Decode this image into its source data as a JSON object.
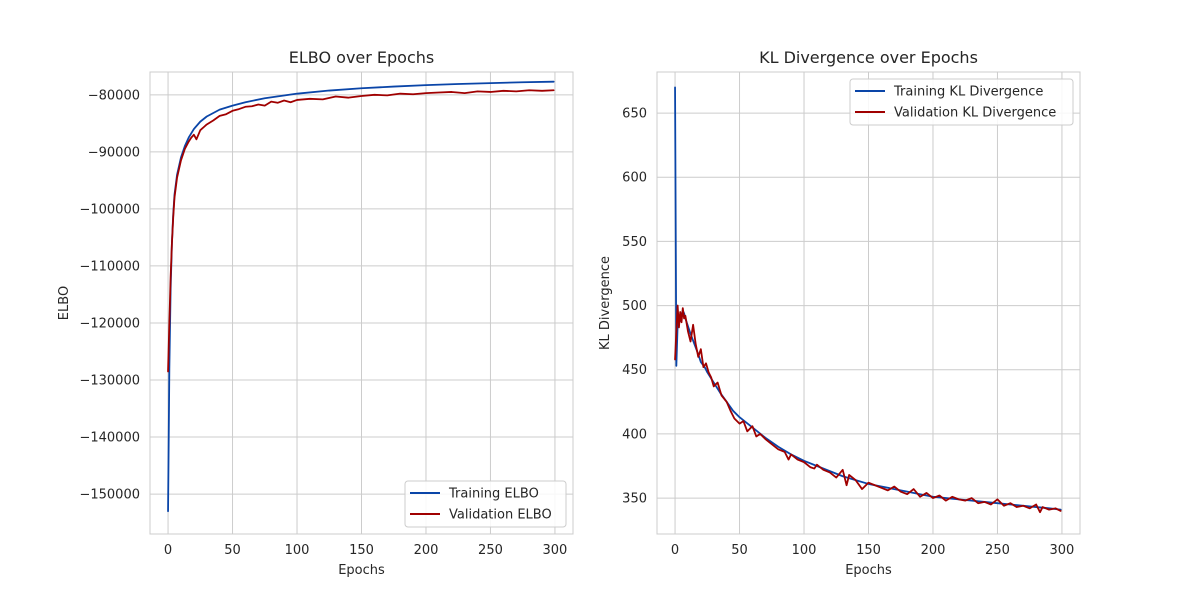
{
  "colors": {
    "training": "#0a45a8",
    "validation": "#a00000",
    "grid": "#cccccc"
  },
  "chart_data": [
    {
      "type": "line",
      "title": "ELBO over Epochs",
      "xlabel": "Epochs",
      "ylabel": "ELBO",
      "xlim": [
        -14,
        314
      ],
      "ylim": [
        -157000,
        -76000
      ],
      "x_ticks": [
        0,
        50,
        100,
        150,
        200,
        250,
        300
      ],
      "x_tick_labels": [
        "0",
        "50",
        "100",
        "150",
        "200",
        "250",
        "300"
      ],
      "y_ticks": [
        -150000,
        -140000,
        -130000,
        -120000,
        -110000,
        -100000,
        -90000,
        -80000
      ],
      "y_tick_labels": [
        "−150000",
        "−140000",
        "−130000",
        "−120000",
        "−110000",
        "−100000",
        "−90000",
        "−80000"
      ],
      "grid": true,
      "legend_position": "lower-right",
      "series": [
        {
          "name": "Training ELBO",
          "color": "#0a45a8",
          "x": [
            0,
            1,
            2,
            3,
            4,
            5,
            7,
            10,
            13,
            16,
            20,
            25,
            30,
            40,
            50,
            60,
            75,
            100,
            125,
            150,
            175,
            200,
            225,
            250,
            275,
            299
          ],
          "y": [
            -153000,
            -128000,
            -114000,
            -106000,
            -101000,
            -97500,
            -94000,
            -91000,
            -89000,
            -87500,
            -86000,
            -84700,
            -83800,
            -82600,
            -81900,
            -81300,
            -80600,
            -79800,
            -79250,
            -78850,
            -78550,
            -78300,
            -78100,
            -77950,
            -77800,
            -77700
          ]
        },
        {
          "name": "Validation ELBO",
          "color": "#a00000",
          "x": [
            0,
            1,
            2,
            3,
            4,
            5,
            7,
            10,
            13,
            16,
            18,
            20,
            22,
            25,
            28,
            30,
            35,
            40,
            45,
            50,
            55,
            60,
            65,
            70,
            75,
            80,
            85,
            90,
            95,
            100,
            110,
            120,
            130,
            140,
            150,
            160,
            170,
            180,
            190,
            200,
            210,
            220,
            230,
            240,
            250,
            260,
            270,
            280,
            290,
            299
          ],
          "y": [
            -128500,
            -120000,
            -112000,
            -106000,
            -101500,
            -98000,
            -94500,
            -91500,
            -89500,
            -88200,
            -87500,
            -87000,
            -87800,
            -86200,
            -85600,
            -85200,
            -84500,
            -83700,
            -83400,
            -82800,
            -82500,
            -82100,
            -82000,
            -81700,
            -81900,
            -81200,
            -81400,
            -81000,
            -81300,
            -80900,
            -80700,
            -80800,
            -80300,
            -80500,
            -80200,
            -80000,
            -80100,
            -79800,
            -79900,
            -79700,
            -79600,
            -79500,
            -79700,
            -79400,
            -79500,
            -79300,
            -79400,
            -79200,
            -79300,
            -79200
          ]
        }
      ]
    },
    {
      "type": "line",
      "title": "KL Divergence over Epochs",
      "xlabel": "Epochs",
      "ylabel": "KL Divergence",
      "xlim": [
        -14,
        314
      ],
      "ylim": [
        322,
        682
      ],
      "x_ticks": [
        0,
        50,
        100,
        150,
        200,
        250,
        300
      ],
      "x_tick_labels": [
        "0",
        "50",
        "100",
        "150",
        "200",
        "250",
        "300"
      ],
      "y_ticks": [
        350,
        400,
        450,
        500,
        550,
        600,
        650
      ],
      "y_tick_labels": [
        "350",
        "400",
        "450",
        "500",
        "550",
        "600",
        "650"
      ],
      "grid": true,
      "legend_position": "upper-right",
      "series": [
        {
          "name": "Training KL Divergence",
          "color": "#0a45a8",
          "x": [
            0,
            1,
            2,
            3,
            4,
            5,
            6,
            7,
            8,
            10,
            12,
            15,
            18,
            20,
            23,
            25,
            30,
            35,
            40,
            45,
            50,
            60,
            70,
            80,
            90,
            100,
            110,
            120,
            130,
            140,
            150,
            160,
            170,
            180,
            190,
            200,
            210,
            220,
            230,
            240,
            250,
            260,
            270,
            280,
            290,
            299
          ],
          "y": [
            670,
            453,
            485,
            492,
            488,
            493,
            496,
            494,
            490,
            484,
            478,
            470,
            462,
            456,
            452,
            448,
            440,
            432,
            425,
            418,
            413,
            405,
            397,
            390,
            384,
            379,
            375,
            371,
            367,
            364,
            361,
            359,
            357,
            355,
            353,
            351,
            350,
            349,
            348,
            347,
            346,
            345,
            344,
            343,
            342,
            341
          ]
        },
        {
          "name": "Validation KL Divergence",
          "color": "#a00000",
          "x": [
            0,
            1,
            2,
            3,
            4,
            5,
            6,
            7,
            8,
            10,
            12,
            14,
            16,
            18,
            20,
            22,
            24,
            26,
            28,
            30,
            33,
            36,
            40,
            43,
            46,
            50,
            53,
            56,
            60,
            63,
            66,
            70,
            75,
            80,
            85,
            88,
            90,
            95,
            100,
            105,
            108,
            110,
            115,
            120,
            125,
            130,
            133,
            135,
            140,
            145,
            150,
            155,
            160,
            165,
            170,
            175,
            180,
            185,
            190,
            195,
            200,
            205,
            210,
            215,
            220,
            225,
            230,
            235,
            240,
            245,
            250,
            255,
            260,
            265,
            270,
            275,
            280,
            283,
            285,
            290,
            295,
            299
          ],
          "y": [
            458,
            480,
            500,
            483,
            495,
            487,
            498,
            490,
            492,
            480,
            472,
            485,
            470,
            460,
            466,
            452,
            455,
            448,
            444,
            437,
            440,
            430,
            425,
            418,
            412,
            408,
            410,
            402,
            406,
            398,
            400,
            396,
            392,
            388,
            386,
            380,
            384,
            380,
            378,
            374,
            373,
            376,
            372,
            370,
            366,
            372,
            360,
            368,
            364,
            357,
            362,
            360,
            358,
            356,
            359,
            355,
            353,
            357,
            351,
            354,
            350,
            352,
            348,
            351,
            349,
            348,
            350,
            346,
            347,
            345,
            349,
            344,
            346,
            343,
            344,
            342,
            345,
            339,
            343,
            341,
            342,
            340
          ]
        }
      ]
    }
  ]
}
